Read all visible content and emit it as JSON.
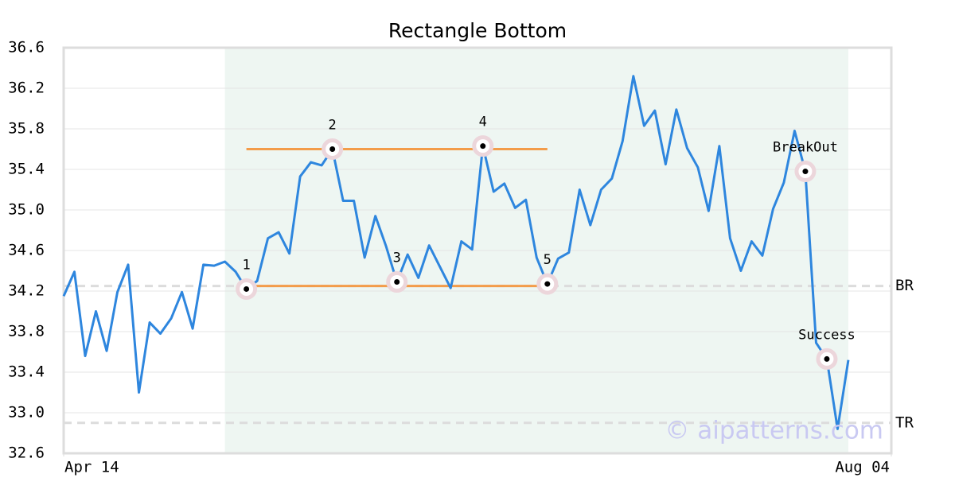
{
  "chart_data": {
    "type": "line",
    "title": "Rectangle Bottom",
    "color": "#2e86de",
    "x": [
      0,
      1,
      2,
      3,
      4,
      5,
      6,
      7,
      8,
      9,
      10,
      11,
      12,
      13,
      14,
      15,
      16,
      17,
      18,
      19,
      20,
      21,
      22,
      23,
      24,
      25,
      26,
      27,
      28,
      29,
      30,
      31,
      32,
      33,
      34,
      35,
      36,
      37,
      38,
      39,
      40,
      41,
      42,
      43,
      44,
      45,
      46,
      47,
      48,
      49,
      50,
      51,
      52,
      53,
      54,
      55,
      56,
      57,
      58,
      59,
      60,
      61,
      62,
      63,
      64,
      65,
      66,
      67,
      68,
      69,
      70,
      71,
      72,
      73
    ],
    "values": [
      34.15,
      34.39,
      33.56,
      34.0,
      33.61,
      34.19,
      34.46,
      33.2,
      33.89,
      33.78,
      33.93,
      34.19,
      33.83,
      34.46,
      34.45,
      34.49,
      34.39,
      34.22,
      34.3,
      34.72,
      34.78,
      34.57,
      35.33,
      35.47,
      35.44,
      35.6,
      35.09,
      35.09,
      34.53,
      34.94,
      34.64,
      34.29,
      34.56,
      34.33,
      34.65,
      34.44,
      34.23,
      34.69,
      34.61,
      35.63,
      35.18,
      35.26,
      35.02,
      35.1,
      34.53,
      34.27,
      34.52,
      34.58,
      35.2,
      34.85,
      35.2,
      35.31,
      35.68,
      36.32,
      35.83,
      35.98,
      35.45,
      35.99,
      35.61,
      35.42,
      34.99,
      35.63,
      34.72,
      34.4,
      34.69,
      34.55,
      35.01,
      35.27,
      35.78,
      35.38,
      33.69,
      33.53,
      32.84,
      33.52
    ],
    "xlim": [
      0,
      77
    ],
    "xticks": [
      {
        "value": 0,
        "label": "Apr 14"
      },
      {
        "value": 77,
        "label": "Aug 04"
      }
    ],
    "ylim": [
      32.6,
      36.6
    ],
    "yticks": [
      32.6,
      {
        "value": 33,
        "label": "33.0"
      },
      33.4,
      33.8,
      34.2,
      34.6,
      {
        "value": 35,
        "label": "35.0"
      },
      35.4,
      35.8,
      36.2,
      36.6
    ],
    "grid": true,
    "highlight_region": {
      "x": [
        15,
        73
      ],
      "color": "#eef6f2"
    },
    "levels": [
      {
        "label": "BR",
        "value": 34.25
      },
      {
        "label": "TR",
        "value": 32.9
      }
    ],
    "rectangle_lines": {
      "color": "#f39c4a",
      "lines": [
        {
          "value": 35.6,
          "x": [
            17,
            45
          ]
        },
        {
          "value": 34.25,
          "x": [
            17,
            45
          ]
        }
      ]
    },
    "annotations": [
      {
        "label": "1",
        "x": 17
      },
      {
        "label": "2",
        "x": 25
      },
      {
        "label": "3",
        "x": 31
      },
      {
        "label": "4",
        "x": 39
      },
      {
        "label": "5",
        "x": 45
      },
      {
        "label": "BreakOut",
        "x": 69
      },
      {
        "label": "Success",
        "x": 71
      }
    ],
    "watermark": "© aipatterns.com"
  }
}
